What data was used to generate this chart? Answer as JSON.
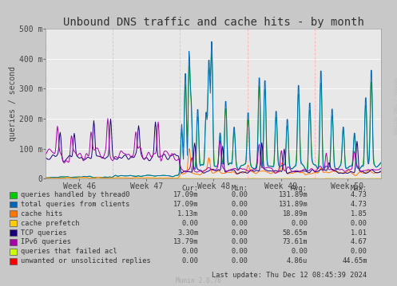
{
  "title": "Unbound DNS traffic and cache hits - by month",
  "ylabel": "queries / second",
  "right_label": "RRDTOOL / TOBI OETIKER",
  "background_color": "#c8c8c8",
  "plot_bg_color": "#e8e8e8",
  "grid_color_h": "#ffffff",
  "grid_color_v": "#ffb0b0",
  "ylim": [
    0,
    500
  ],
  "ytick_labels": [
    "0",
    "100 m",
    "200 m",
    "300 m",
    "400 m",
    "500 m"
  ],
  "xtick_labels": [
    "Week 46",
    "Week 47",
    "Week 48",
    "Week 49",
    "Week 50"
  ],
  "series_colors": [
    "#00cc00",
    "#0066bb",
    "#ff7700",
    "#ffcc00",
    "#1a0077",
    "#aa00aa",
    "#ccff00",
    "#ff0000"
  ],
  "legend_data": [
    {
      "label": "queries handled by thread0",
      "color": "#00cc00",
      "cur": "17.09m",
      "min": "0.00",
      "avg": "131.89m",
      "max": "4.73"
    },
    {
      "label": "total queries from clients",
      "color": "#0066bb",
      "cur": "17.09m",
      "min": "0.00",
      "avg": "131.89m",
      "max": "4.73"
    },
    {
      "label": "cache hits",
      "color": "#ff7700",
      "cur": "1.13m",
      "min": "0.00",
      "avg": "18.89m",
      "max": "1.85"
    },
    {
      "label": "cache prefetch",
      "color": "#ffcc00",
      "cur": "0.00",
      "min": "0.00",
      "avg": "0.00",
      "max": "0.00"
    },
    {
      "label": "TCP queries",
      "color": "#1a0077",
      "cur": "3.30m",
      "min": "0.00",
      "avg": "58.65m",
      "max": "1.01"
    },
    {
      "label": "IPv6 queries",
      "color": "#aa00aa",
      "cur": "13.79m",
      "min": "0.00",
      "avg": "73.61m",
      "max": "4.67"
    },
    {
      "label": "queries that failed acl",
      "color": "#ccff00",
      "cur": "0.00",
      "min": "0.00",
      "avg": "0.00",
      "max": "0.00"
    },
    {
      "label": "unwanted or unsolicited replies",
      "color": "#ff0000",
      "cur": "0.00",
      "min": "0.00",
      "avg": "4.86u",
      "max": "44.65m"
    }
  ],
  "last_update": "Last update: Thu Dec 12 08:45:39 2024",
  "munin_version": "Munin 2.0.76",
  "title_fontsize": 10,
  "axis_fontsize": 7,
  "legend_fontsize": 6.2
}
